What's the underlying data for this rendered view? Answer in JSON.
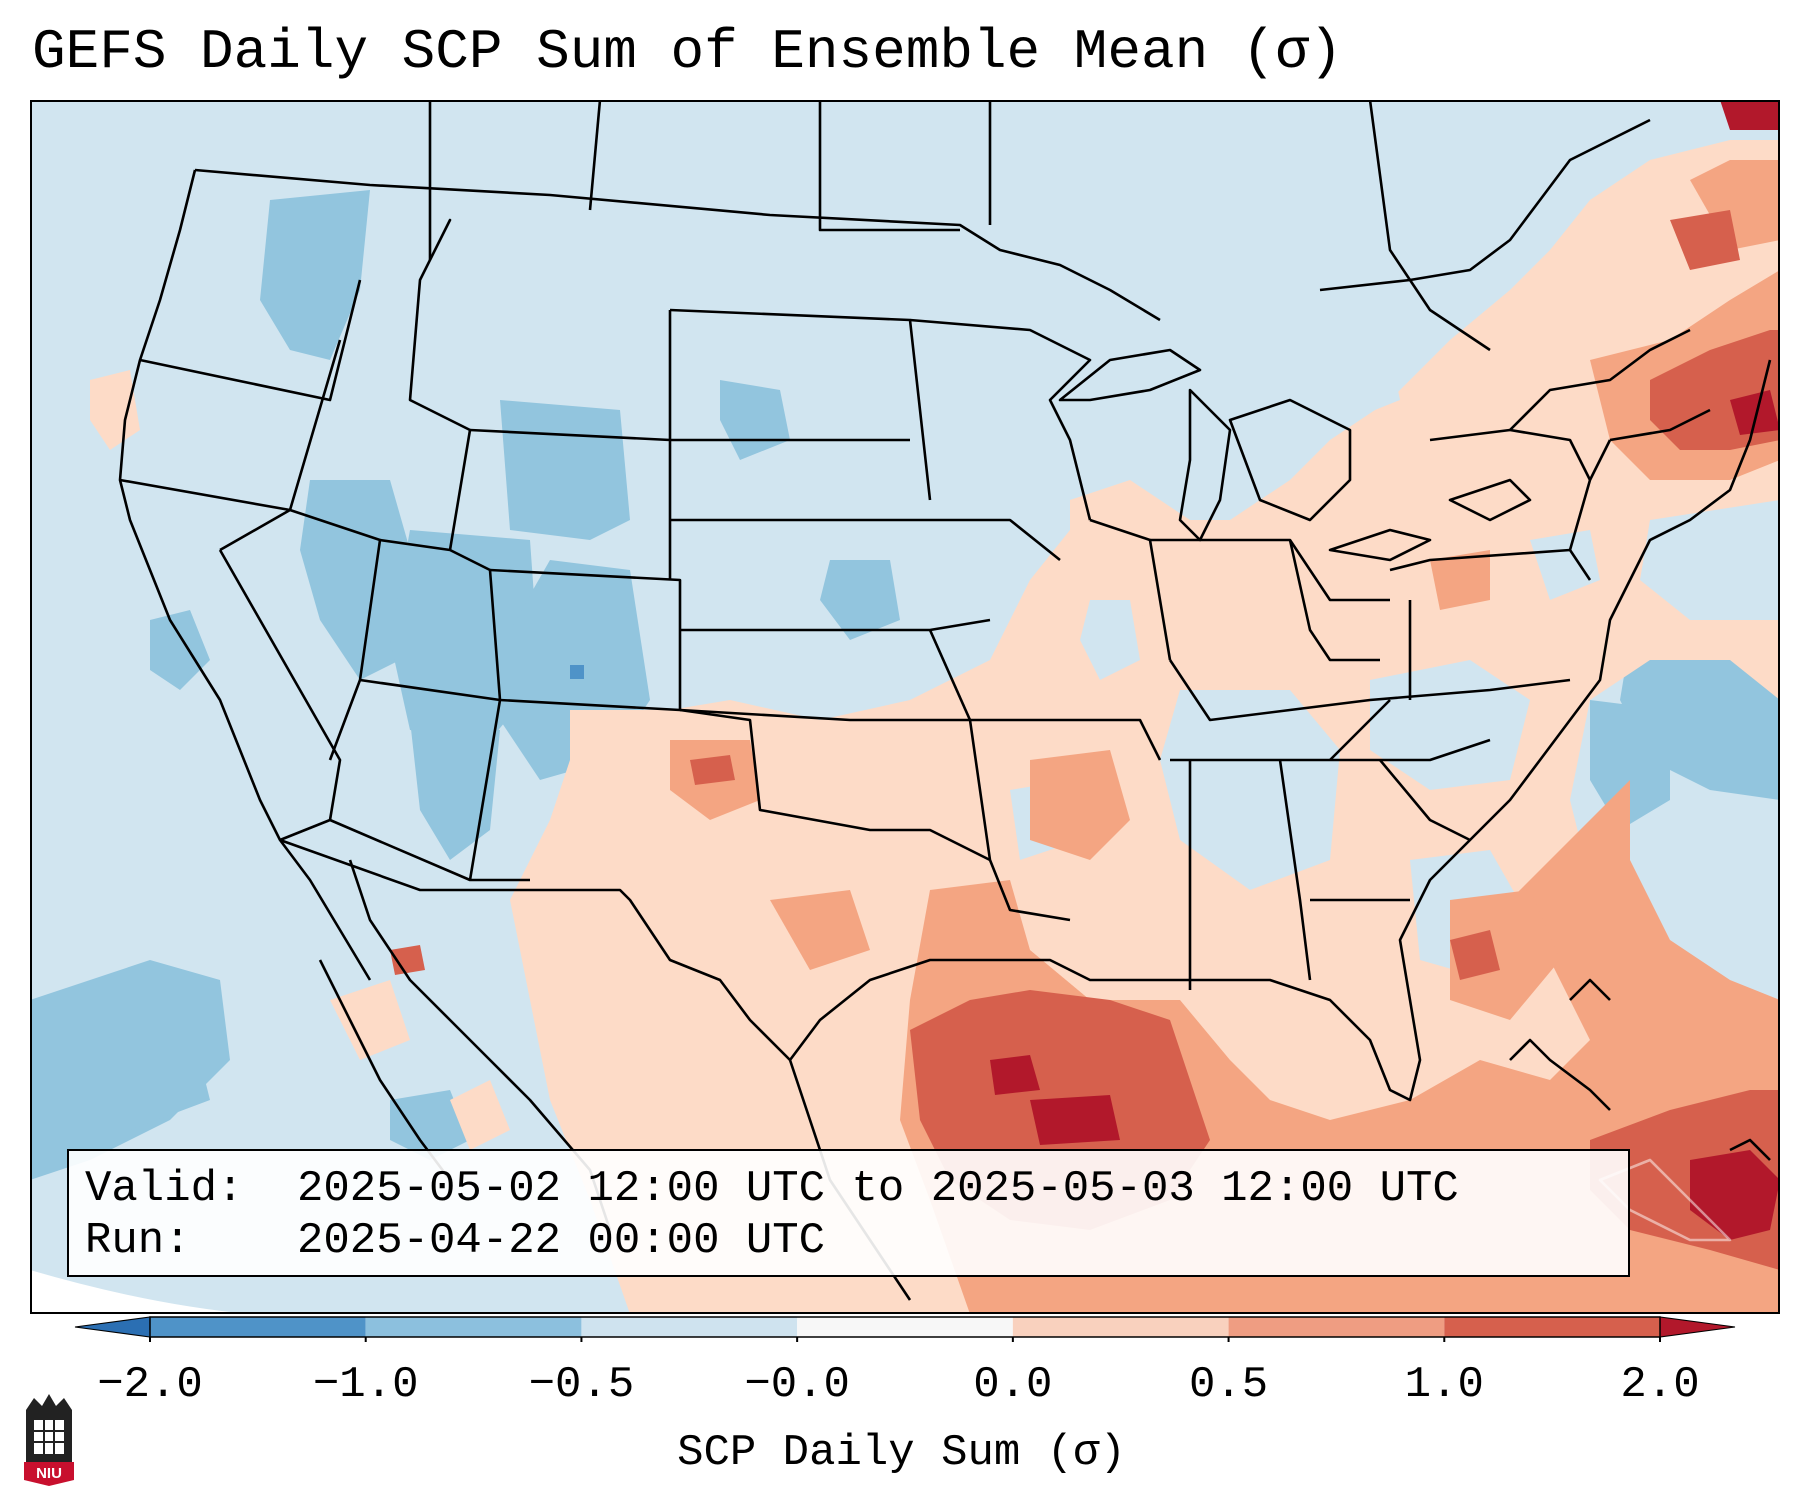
{
  "title": "GEFS Daily SCP Sum of Ensemble Mean (σ)",
  "info": {
    "valid_label": "Valid:",
    "valid_value": "2025-05-02 12:00 UTC to 2025-05-03 12:00 UTC",
    "run_label": "Run:",
    "run_value": "2025-04-22 00:00 UTC"
  },
  "colorbar": {
    "label": "SCP Daily Sum (σ)",
    "ticks": [
      "−2.0",
      "−1.0",
      "−0.5",
      "−0.0",
      "0.0",
      "0.5",
      "1.0",
      "2.0"
    ],
    "colors": [
      "#2b6fb3",
      "#4f93c8",
      "#8cc0de",
      "#cfe3ef",
      "#f7f7f7",
      "#f9d1be",
      "#ef9d82",
      "#d6604d",
      "#b2182b"
    ]
  },
  "logo": {
    "text": "NIU"
  }
}
